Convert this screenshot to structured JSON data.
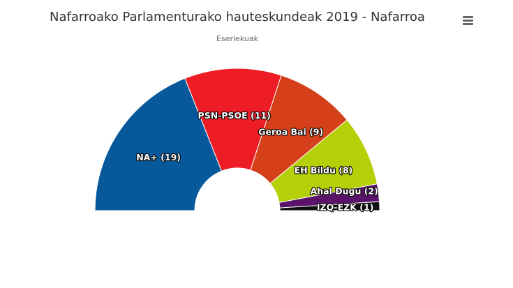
{
  "chart_data": {
    "type": "pie",
    "variant": "semicircle-parliament",
    "title": "Nafarroako Parlamenturako hauteskundeak 2019 - Nafarroa",
    "subtitle": "Eserlekuak",
    "series": [
      {
        "name": "Eserlekuak",
        "data": [
          {
            "label": "NA+",
            "value": 19,
            "display": "NA+ (19)",
            "color": "#08599c"
          },
          {
            "label": "PSN-PSOE",
            "value": 11,
            "display": "PSN-PSOE (11)",
            "color": "#ee1c25"
          },
          {
            "label": "Geroa Bai",
            "value": 9,
            "display": "Geroa Bai (9)",
            "color": "#d5401a"
          },
          {
            "label": "EH Bildu",
            "value": 8,
            "display": "EH Bildu (8)",
            "color": "#b5cf08"
          },
          {
            "label": "Ahal Dugu",
            "value": 2,
            "display": "Ahal Dugu (2)",
            "color": "#5a1369"
          },
          {
            "label": "IZQ-EZK",
            "value": 1,
            "display": "IZQ-EZK (1)",
            "color": "#111111"
          }
        ]
      }
    ],
    "legend": false
  },
  "menu": {
    "icon": "hamburger-menu-icon"
  }
}
